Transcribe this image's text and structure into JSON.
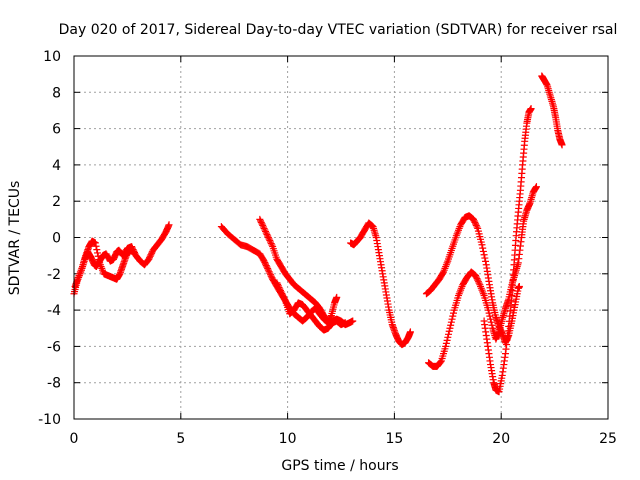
{
  "chart_data": {
    "type": "scatter",
    "title": "Day 020 of 2017, Sidereal Day-to-day VTEC variation (SDTVAR) for receiver rsal",
    "xlabel": "GPS time / hours",
    "ylabel": "SDTVAR / TECUs",
    "xlim": [
      0,
      25
    ],
    "ylim": [
      -10,
      10
    ],
    "xticks": [
      0,
      5,
      10,
      15,
      20,
      25
    ],
    "xtick_labels": [
      "0",
      "5",
      "10",
      "15",
      "20",
      "25"
    ],
    "yticks": [
      -10,
      -8,
      -6,
      -4,
      -2,
      0,
      2,
      4,
      6,
      8,
      10
    ],
    "ytick_labels": [
      "-10",
      "-8",
      "-6",
      "-4",
      "-2",
      "0",
      "2",
      "4",
      "6",
      "8",
      "10"
    ],
    "grid": true,
    "marker": "plus",
    "color": "#ff0000",
    "tracks": [
      [
        [
          0.0,
          -3.1
        ],
        [
          0.15,
          -2.4
        ],
        [
          0.35,
          -1.8
        ],
        [
          0.5,
          -1.2
        ],
        [
          0.65,
          -0.8
        ],
        [
          0.8,
          -1.1
        ],
        [
          0.95,
          -1.5
        ],
        [
          1.05,
          -1.6
        ],
        [
          1.2,
          -1.3
        ],
        [
          1.35,
          -1.0
        ],
        [
          1.5,
          -0.9
        ],
        [
          1.7,
          -1.3
        ],
        [
          1.85,
          -1.2
        ],
        [
          2.0,
          -0.8
        ],
        [
          2.1,
          -0.7
        ],
        [
          2.3,
          -1.0
        ],
        [
          2.5,
          -0.6
        ],
        [
          2.7,
          -0.5
        ],
        [
          2.9,
          -1.0
        ],
        [
          3.1,
          -1.3
        ],
        [
          3.3,
          -1.5
        ],
        [
          3.5,
          -1.2
        ],
        [
          3.7,
          -0.7
        ],
        [
          3.9,
          -0.4
        ],
        [
          4.1,
          -0.1
        ],
        [
          4.3,
          0.3
        ],
        [
          4.45,
          0.7
        ]
      ],
      [
        [
          0.05,
          -2.7
        ],
        [
          0.2,
          -2.2
        ],
        [
          0.4,
          -1.6
        ],
        [
          0.55,
          -1.0
        ],
        [
          0.7,
          -0.5
        ],
        [
          0.85,
          -0.2
        ],
        [
          1.0,
          -0.3
        ],
        [
          1.2,
          -1.4
        ],
        [
          1.4,
          -2.0
        ],
        [
          1.6,
          -2.1
        ],
        [
          1.8,
          -2.2
        ],
        [
          2.0,
          -2.3
        ],
        [
          2.15,
          -2.0
        ],
        [
          2.3,
          -1.5
        ],
        [
          2.45,
          -1.0
        ],
        [
          2.6,
          -0.7
        ],
        [
          2.8,
          -0.8
        ]
      ],
      [
        [
          6.9,
          0.6
        ],
        [
          7.2,
          0.2
        ],
        [
          7.5,
          -0.1
        ],
        [
          7.8,
          -0.4
        ],
        [
          8.1,
          -0.5
        ],
        [
          8.4,
          -0.7
        ],
        [
          8.7,
          -0.9
        ],
        [
          8.9,
          -1.3
        ],
        [
          9.1,
          -1.8
        ],
        [
          9.3,
          -2.3
        ],
        [
          9.5,
          -2.7
        ],
        [
          9.7,
          -3.1
        ],
        [
          9.9,
          -3.5
        ],
        [
          10.1,
          -3.9
        ],
        [
          10.3,
          -4.2
        ],
        [
          10.5,
          -4.4
        ],
        [
          10.7,
          -4.6
        ],
        [
          10.9,
          -4.4
        ],
        [
          11.1,
          -4.1
        ],
        [
          11.3,
          -3.9
        ],
        [
          11.5,
          -4.2
        ],
        [
          11.7,
          -4.5
        ],
        [
          11.9,
          -4.7
        ],
        [
          12.1,
          -4.6
        ],
        [
          12.3,
          -4.5
        ],
        [
          12.5,
          -4.6
        ],
        [
          12.7,
          -4.8
        ],
        [
          12.9,
          -4.7
        ],
        [
          13.05,
          -4.6
        ]
      ],
      [
        [
          8.7,
          1.0
        ],
        [
          8.9,
          0.5
        ],
        [
          9.1,
          0.0
        ],
        [
          9.3,
          -0.5
        ],
        [
          9.5,
          -1.2
        ],
        [
          9.7,
          -1.6
        ],
        [
          9.9,
          -2.0
        ],
        [
          10.1,
          -2.3
        ],
        [
          10.3,
          -2.6
        ],
        [
          10.5,
          -2.8
        ],
        [
          10.7,
          -3.0
        ],
        [
          10.9,
          -3.2
        ],
        [
          11.1,
          -3.4
        ],
        [
          11.3,
          -3.6
        ],
        [
          11.5,
          -3.9
        ],
        [
          11.7,
          -4.3
        ],
        [
          11.9,
          -4.7
        ],
        [
          12.05,
          -4.3
        ],
        [
          12.2,
          -3.6
        ],
        [
          12.3,
          -3.3
        ]
      ],
      [
        [
          9.5,
          -2.5
        ],
        [
          9.7,
          -3.0
        ],
        [
          9.9,
          -3.5
        ],
        [
          10.1,
          -4.2
        ],
        [
          10.3,
          -4.0
        ],
        [
          10.5,
          -3.6
        ],
        [
          10.7,
          -3.7
        ],
        [
          10.9,
          -4.0
        ],
        [
          11.1,
          -4.3
        ],
        [
          11.3,
          -4.6
        ],
        [
          11.5,
          -4.9
        ],
        [
          11.7,
          -5.1
        ],
        [
          11.9,
          -5.0
        ],
        [
          12.1,
          -4.7
        ],
        [
          12.3,
          -4.6
        ],
        [
          12.5,
          -4.8
        ],
        [
          12.7,
          -4.7
        ]
      ],
      [
        [
          12.95,
          -0.3
        ],
        [
          13.1,
          -0.4
        ],
        [
          13.25,
          -0.2
        ],
        [
          13.4,
          0.0
        ],
        [
          13.6,
          0.4
        ],
        [
          13.8,
          0.8
        ],
        [
          14.0,
          0.6
        ],
        [
          14.15,
          0.0
        ],
        [
          14.3,
          -1.0
        ],
        [
          14.45,
          -2.0
        ],
        [
          14.6,
          -3.0
        ],
        [
          14.75,
          -4.0
        ],
        [
          14.9,
          -4.8
        ],
        [
          15.05,
          -5.3
        ],
        [
          15.2,
          -5.7
        ],
        [
          15.35,
          -5.9
        ],
        [
          15.5,
          -5.8
        ],
        [
          15.65,
          -5.5
        ],
        [
          15.75,
          -5.2
        ]
      ],
      [
        [
          16.5,
          -3.1
        ],
        [
          16.7,
          -2.9
        ],
        [
          16.9,
          -2.6
        ],
        [
          17.1,
          -2.3
        ],
        [
          17.3,
          -1.9
        ],
        [
          17.5,
          -1.3
        ],
        [
          17.7,
          -0.6
        ],
        [
          17.9,
          0.1
        ],
        [
          18.1,
          0.7
        ],
        [
          18.3,
          1.1
        ],
        [
          18.5,
          1.2
        ],
        [
          18.7,
          1.0
        ],
        [
          18.9,
          0.5
        ],
        [
          19.1,
          -0.4
        ],
        [
          19.3,
          -1.5
        ],
        [
          19.45,
          -2.6
        ],
        [
          19.6,
          -3.6
        ],
        [
          19.75,
          -4.4
        ],
        [
          19.9,
          -4.9
        ],
        [
          20.05,
          -5.3
        ],
        [
          20.2,
          -5.8
        ],
        [
          20.35,
          -5.4
        ],
        [
          20.5,
          -4.6
        ],
        [
          20.65,
          -3.7
        ],
        [
          20.8,
          -2.8
        ],
        [
          20.85,
          -2.7
        ]
      ],
      [
        [
          16.6,
          -6.9
        ],
        [
          16.8,
          -7.1
        ],
        [
          17.0,
          -7.1
        ],
        [
          17.2,
          -6.8
        ],
        [
          17.4,
          -6.0
        ],
        [
          17.6,
          -5.0
        ],
        [
          17.8,
          -4.0
        ],
        [
          18.0,
          -3.2
        ],
        [
          18.2,
          -2.6
        ],
        [
          18.4,
          -2.2
        ],
        [
          18.6,
          -1.9
        ],
        [
          18.8,
          -2.1
        ],
        [
          19.0,
          -2.6
        ],
        [
          19.2,
          -3.2
        ],
        [
          19.4,
          -4.0
        ],
        [
          19.6,
          -5.0
        ],
        [
          19.75,
          -5.6
        ],
        [
          19.9,
          -5.2
        ],
        [
          20.05,
          -4.5
        ],
        [
          20.2,
          -3.9
        ],
        [
          20.35,
          -3.4
        ],
        [
          20.5,
          -2.6
        ],
        [
          20.65,
          -2.0
        ],
        [
          20.8,
          -1.4
        ],
        [
          20.95,
          0.0
        ],
        [
          21.05,
          0.9
        ],
        [
          21.2,
          1.5
        ],
        [
          21.35,
          1.9
        ],
        [
          21.5,
          2.5
        ],
        [
          21.65,
          2.8
        ]
      ],
      [
        [
          19.2,
          -4.6
        ],
        [
          19.35,
          -5.8
        ],
        [
          19.5,
          -7.0
        ],
        [
          19.65,
          -8.0
        ],
        [
          19.75,
          -8.4
        ],
        [
          19.9,
          -8.5
        ],
        [
          20.05,
          -7.6
        ],
        [
          20.2,
          -6.4
        ],
        [
          20.35,
          -4.9
        ],
        [
          20.5,
          -3.2
        ],
        [
          20.6,
          -1.5
        ],
        [
          20.7,
          0.1
        ],
        [
          20.8,
          1.4
        ],
        [
          20.9,
          2.6
        ],
        [
          21.0,
          4.0
        ],
        [
          21.1,
          5.3
        ],
        [
          21.2,
          6.3
        ],
        [
          21.3,
          6.9
        ],
        [
          21.4,
          7.1
        ]
      ],
      [
        [
          21.9,
          8.9
        ],
        [
          22.0,
          8.7
        ],
        [
          22.15,
          8.4
        ],
        [
          22.3,
          7.8
        ],
        [
          22.45,
          7.2
        ],
        [
          22.55,
          6.6
        ],
        [
          22.65,
          5.9
        ],
        [
          22.75,
          5.4
        ],
        [
          22.85,
          5.1
        ]
      ]
    ]
  }
}
